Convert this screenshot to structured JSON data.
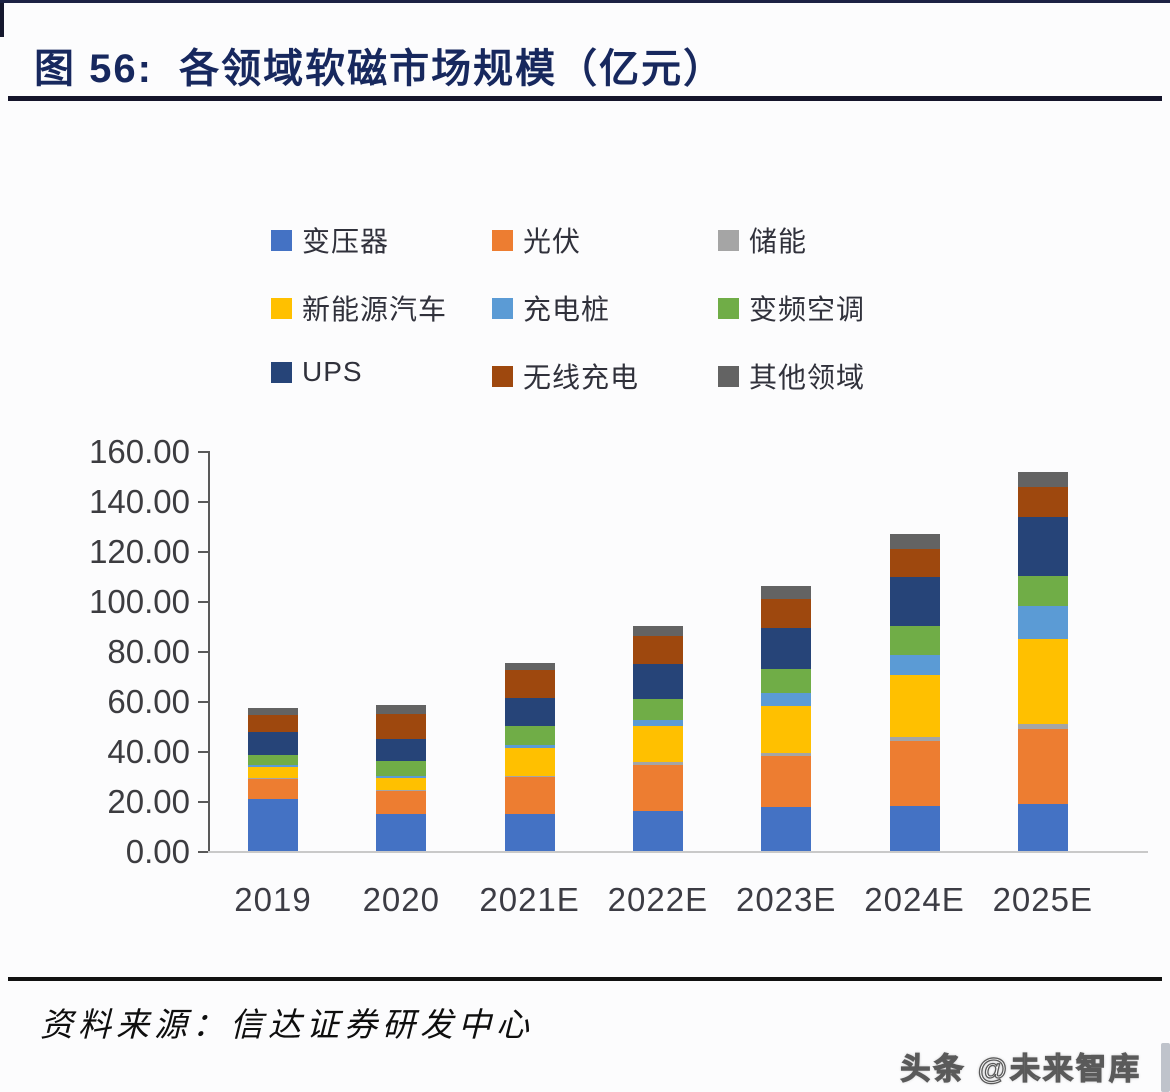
{
  "page": {
    "title": "图 56:  各领域软磁市场规模（亿元）",
    "source_note": "资料来源：信达证券研发中心",
    "watermark": "头条 @未来智库"
  },
  "chart_data": {
    "type": "bar",
    "stacked": true,
    "title": "各领域软磁市场规模（亿元）",
    "unit": "亿元",
    "xlabel": "",
    "ylabel": "",
    "ylim": [
      0,
      160
    ],
    "ytick_step": 20,
    "ytick_labels": [
      "0.00",
      "20.00",
      "40.00",
      "60.00",
      "80.00",
      "100.00",
      "120.00",
      "140.00",
      "160.00"
    ],
    "grid": false,
    "legend_position": "top",
    "categories": [
      "2019",
      "2020",
      "2021E",
      "2022E",
      "2023E",
      "2024E",
      "2025E"
    ],
    "series": [
      {
        "name": "变压器",
        "color": "#4472c4",
        "values": [
          21,
          15,
          15,
          16,
          17.5,
          18,
          19
        ]
      },
      {
        "name": "光伏",
        "color": "#ed7d31",
        "values": [
          8,
          9,
          14.5,
          18.5,
          20.5,
          26,
          30
        ]
      },
      {
        "name": "储能",
        "color": "#a5a5a5",
        "values": [
          0.3,
          0.4,
          0.6,
          1,
          1.2,
          1.5,
          2
        ]
      },
      {
        "name": "新能源汽车",
        "color": "#ffc000",
        "values": [
          4.5,
          5,
          11,
          14.5,
          19,
          25,
          34
        ]
      },
      {
        "name": "充电桩",
        "color": "#5b9bd5",
        "values": [
          0.8,
          0.8,
          1.5,
          2.5,
          5,
          8,
          13
        ]
      },
      {
        "name": "变频空调",
        "color": "#70ad47",
        "values": [
          4,
          6,
          7.5,
          8.5,
          9.5,
          11.5,
          12
        ]
      },
      {
        "name": "UPS",
        "color": "#264478",
        "values": [
          9,
          8.8,
          11,
          14,
          16.5,
          19.5,
          23.5
        ]
      },
      {
        "name": "无线充电",
        "color": "#9e480e",
        "values": [
          7,
          10,
          11.5,
          11,
          11.5,
          11.5,
          12
        ]
      },
      {
        "name": "其他领域",
        "color": "#636363",
        "values": [
          2.5,
          3.5,
          2.8,
          4,
          5.5,
          6,
          6
        ]
      }
    ]
  }
}
